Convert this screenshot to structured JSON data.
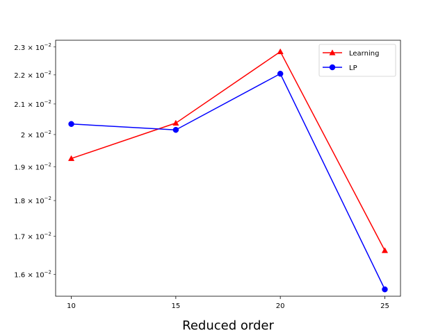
{
  "chart_data": {
    "type": "line",
    "xlabel": "Reduced order",
    "ylabel": "",
    "x": [
      10,
      15,
      20,
      25
    ],
    "xlim": [
      9.25,
      25.75
    ],
    "ylim": [
      0.01545,
      0.02325
    ],
    "yscale": "log",
    "grid": false,
    "legend_position": "top-right",
    "x_ticks": [
      "10",
      "15",
      "20",
      "25"
    ],
    "y_ticks": [
      {
        "value": 0.016,
        "base": "1.6",
        "exp": "−2"
      },
      {
        "value": 0.017,
        "base": "1.7",
        "exp": "−2"
      },
      {
        "value": 0.018,
        "base": "1.8",
        "exp": "−2"
      },
      {
        "value": 0.019,
        "base": "1.9",
        "exp": "−2"
      },
      {
        "value": 0.02,
        "base": "2",
        "exp": "−2"
      },
      {
        "value": 0.021,
        "base": "2.1",
        "exp": "−2"
      },
      {
        "value": 0.022,
        "base": "2.2",
        "exp": "−2"
      },
      {
        "value": 0.023,
        "base": "2.3",
        "exp": "−2"
      }
    ],
    "series": [
      {
        "name": "Learning",
        "color": "#ff0000",
        "marker": "triangle",
        "values": [
          0.01925,
          0.02037,
          0.02283,
          0.01662
        ]
      },
      {
        "name": "LP",
        "color": "#0000ff",
        "marker": "circle",
        "values": [
          0.02034,
          0.02015,
          0.02204,
          0.01562
        ]
      }
    ]
  }
}
